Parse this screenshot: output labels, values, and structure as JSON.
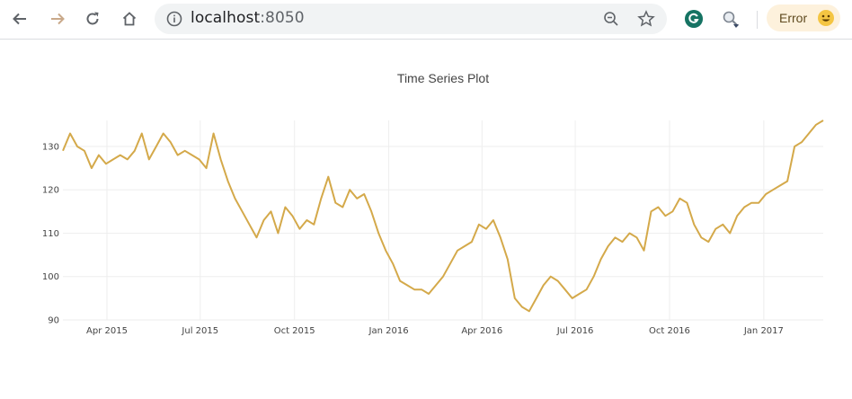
{
  "browser": {
    "url_host": "localhost",
    "url_port": ":8050",
    "error_label": "Error",
    "icons": [
      "back-arrow-icon",
      "forward-arrow-icon",
      "reload-icon",
      "home-icon",
      "info-icon",
      "zoom-out-icon",
      "star-icon",
      "grammarly-icon",
      "extension-icon",
      "emoji-face-icon"
    ]
  },
  "chart_data": {
    "type": "line",
    "title": "Time Series Plot",
    "xlabel": "",
    "ylabel": "",
    "ylim": [
      90,
      136
    ],
    "yticks": [
      90,
      100,
      110,
      120,
      130
    ],
    "xticks": [
      "Apr 2015",
      "Jul 2015",
      "Oct 2015",
      "Jan 2016",
      "Apr 2016",
      "Jul 2016",
      "Oct 2016",
      "Jan 2017"
    ],
    "xtick_dates": [
      "2015-04-01",
      "2015-07-01",
      "2015-10-01",
      "2016-01-01",
      "2016-04-01",
      "2016-07-01",
      "2016-10-01",
      "2017-01-01"
    ],
    "x_range": [
      "2015-02-17",
      "2017-02-28"
    ],
    "line_color": "#d4a94a",
    "series": [
      {
        "x": [
          "2015-02-17",
          "2015-02-24",
          "2015-03-03",
          "2015-03-10",
          "2015-03-17",
          "2015-03-24",
          "2015-03-31",
          "2015-04-07",
          "2015-04-14",
          "2015-04-21",
          "2015-04-28",
          "2015-05-05",
          "2015-05-12",
          "2015-05-19",
          "2015-05-26",
          "2015-06-02",
          "2015-06-09",
          "2015-06-16",
          "2015-06-23",
          "2015-06-30",
          "2015-07-07",
          "2015-07-14",
          "2015-07-21",
          "2015-07-28",
          "2015-08-04",
          "2015-08-11",
          "2015-08-18",
          "2015-08-25",
          "2015-09-01",
          "2015-09-08",
          "2015-09-15",
          "2015-09-22",
          "2015-09-29",
          "2015-10-06",
          "2015-10-13",
          "2015-10-20",
          "2015-10-27",
          "2015-11-03",
          "2015-11-10",
          "2015-11-17",
          "2015-11-24",
          "2015-12-01",
          "2015-12-08",
          "2015-12-15",
          "2015-12-22",
          "2015-12-29",
          "2016-01-05",
          "2016-01-12",
          "2016-01-19",
          "2016-01-26",
          "2016-02-02",
          "2016-02-09",
          "2016-02-16",
          "2016-02-23",
          "2016-03-01",
          "2016-03-08",
          "2016-03-15",
          "2016-03-22",
          "2016-03-29",
          "2016-04-05",
          "2016-04-12",
          "2016-04-19",
          "2016-04-26",
          "2016-05-03",
          "2016-05-10",
          "2016-05-17",
          "2016-05-24",
          "2016-05-31",
          "2016-06-07",
          "2016-06-14",
          "2016-06-21",
          "2016-06-28",
          "2016-07-05",
          "2016-07-12",
          "2016-07-19",
          "2016-07-26",
          "2016-08-02",
          "2016-08-09",
          "2016-08-16",
          "2016-08-23",
          "2016-08-30",
          "2016-09-06",
          "2016-09-13",
          "2016-09-20",
          "2016-09-27",
          "2016-10-04",
          "2016-10-11",
          "2016-10-18",
          "2016-10-25",
          "2016-11-01",
          "2016-11-08",
          "2016-11-15",
          "2016-11-22",
          "2016-11-29",
          "2016-12-06",
          "2016-12-13",
          "2016-12-20",
          "2016-12-27",
          "2017-01-03",
          "2017-01-10",
          "2017-01-17",
          "2017-01-24",
          "2017-01-31",
          "2017-02-07",
          "2017-02-14",
          "2017-02-21",
          "2017-02-28"
        ],
        "values": [
          129,
          133,
          130,
          129,
          125,
          128,
          126,
          127,
          128,
          127,
          129,
          133,
          127,
          130,
          133,
          131,
          128,
          129,
          128,
          127,
          125,
          133,
          127,
          122,
          118,
          115,
          112,
          109,
          113,
          115,
          110,
          116,
          114,
          111,
          113,
          112,
          118,
          123,
          117,
          116,
          120,
          118,
          119,
          115,
          110,
          106,
          103,
          99,
          98,
          97,
          97,
          96,
          98,
          100,
          103,
          106,
          107,
          108,
          112,
          111,
          113,
          109,
          104,
          95,
          93,
          92,
          95,
          98,
          100,
          99,
          97,
          95,
          96,
          97,
          100,
          104,
          107,
          109,
          108,
          110,
          109,
          106,
          115,
          116,
          114,
          115,
          118,
          117,
          112,
          109,
          108,
          111,
          112,
          110,
          114,
          116,
          117,
          117,
          119,
          120,
          121,
          122,
          130,
          131,
          133,
          135,
          136
        ]
      }
    ]
  }
}
